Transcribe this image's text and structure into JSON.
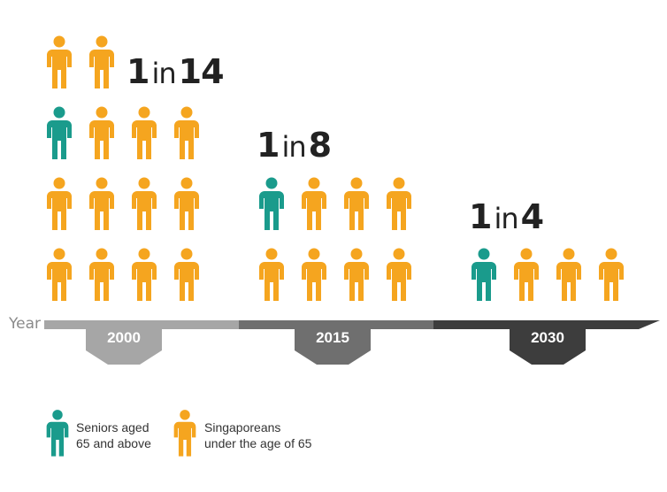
{
  "axis": {
    "label": "Year"
  },
  "groups": [
    {
      "year": "2000",
      "ratio": {
        "left": "1",
        "mid": "in",
        "right": "14"
      },
      "seniors": 1,
      "total": 14
    },
    {
      "year": "2015",
      "ratio": {
        "left": "1",
        "mid": "in",
        "right": "8"
      },
      "seniors": 1,
      "total": 8
    },
    {
      "year": "2030",
      "ratio": {
        "left": "1",
        "mid": "in",
        "right": "4"
      },
      "seniors": 1,
      "total": 4
    }
  ],
  "legend": {
    "seniors": {
      "line1": "Seniors aged",
      "line2": "65 and above",
      "icon": "person-icon"
    },
    "others": {
      "line1": "Singaporeans",
      "line2": "under the age of 65",
      "icon": "person-icon"
    }
  },
  "colors": {
    "senior": "#1a9b8c",
    "other": "#f5a51f",
    "axis_2000": "#a6a6a6",
    "axis_2015": "#6f6f6f",
    "axis_2030": "#3d3d3d"
  }
}
